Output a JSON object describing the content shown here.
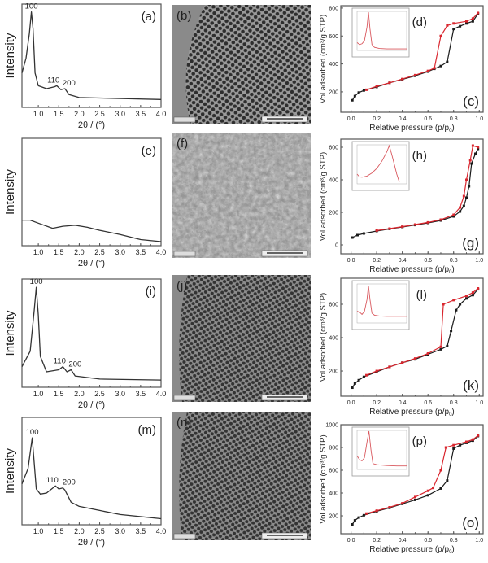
{
  "colors": {
    "adsorption": "#1a1a1a",
    "desorption": "#d9262e",
    "axis": "#555555",
    "tem_background": "#8a8a8a",
    "tem_pore": "#2e2e2e"
  },
  "chart_data": [
    {
      "panel": "(a)",
      "type": "line",
      "xlabel": "2θ / (°)",
      "ylabel": "Intensity",
      "xlim": [
        0.6,
        4.0
      ],
      "ylim": [
        0,
        1.05
      ],
      "xticks": [
        "1.0",
        "1.5",
        "2.0",
        "2.5",
        "3.0",
        "3.5",
        "4.0"
      ],
      "peaks": [
        {
          "label": "100",
          "x": 0.83
        },
        {
          "label": "110",
          "x": 1.45
        },
        {
          "label": "200",
          "x": 1.65
        }
      ],
      "x": [
        0.6,
        0.7,
        0.78,
        0.83,
        0.87,
        0.92,
        1.0,
        1.2,
        1.4,
        1.45,
        1.55,
        1.65,
        1.75,
        2.0,
        3.0,
        4.0
      ],
      "y": [
        0.35,
        0.5,
        0.75,
        0.97,
        0.8,
        0.35,
        0.22,
        0.19,
        0.21,
        0.22,
        0.18,
        0.19,
        0.13,
        0.1,
        0.09,
        0.08
      ]
    },
    {
      "panel": "(e)",
      "type": "line",
      "xlabel": "2θ / (°)",
      "ylabel": "Intensity",
      "xlim": [
        0.6,
        4.0
      ],
      "ylim": [
        0,
        1.05
      ],
      "xticks": [
        "1.0",
        "1.5",
        "2.0",
        "2.5",
        "3.0",
        "3.5",
        "4.0"
      ],
      "peaks": [],
      "x": [
        0.6,
        0.8,
        1.0,
        1.35,
        1.6,
        1.9,
        2.2,
        2.5,
        3.0,
        3.5,
        4.0
      ],
      "y": [
        0.25,
        0.25,
        0.22,
        0.17,
        0.19,
        0.2,
        0.18,
        0.15,
        0.11,
        0.06,
        0.04
      ]
    },
    {
      "panel": "(i)",
      "type": "line",
      "xlabel": "2θ / (°)",
      "ylabel": "Intensity",
      "xlim": [
        0.6,
        4.0
      ],
      "ylim": [
        0,
        1.05
      ],
      "xticks": [
        "1.0",
        "1.5",
        "2.0",
        "2.5",
        "3.0",
        "3.5",
        "4.0"
      ],
      "peaks": [
        {
          "label": "100",
          "x": 0.95
        },
        {
          "label": "110",
          "x": 1.6
        },
        {
          "label": "200",
          "x": 1.8
        }
      ],
      "x": [
        0.6,
        0.8,
        0.9,
        0.95,
        1.0,
        1.05,
        1.2,
        1.5,
        1.6,
        1.7,
        1.8,
        1.9,
        2.5,
        4.0
      ],
      "y": [
        0.2,
        0.35,
        0.75,
        0.97,
        0.7,
        0.3,
        0.15,
        0.17,
        0.2,
        0.15,
        0.17,
        0.11,
        0.08,
        0.07
      ]
    },
    {
      "panel": "(m)",
      "type": "line",
      "xlabel": "2θ / (°)",
      "ylabel": "Intensity",
      "xlim": [
        0.6,
        4.0
      ],
      "ylim": [
        0,
        1.05
      ],
      "xticks": [
        "1.0",
        "1.5",
        "2.0",
        "2.5",
        "3.0",
        "3.5",
        "4.0"
      ],
      "peaks": [
        {
          "label": "100",
          "x": 0.85
        },
        {
          "label": "110",
          "x": 1.42
        },
        {
          "label": "200",
          "x": 1.65
        }
      ],
      "x": [
        0.6,
        0.75,
        0.85,
        0.9,
        0.95,
        1.05,
        1.2,
        1.42,
        1.5,
        1.6,
        1.65,
        1.8,
        2.0,
        2.5,
        3.0,
        4.0
      ],
      "y": [
        0.4,
        0.55,
        0.85,
        0.6,
        0.35,
        0.3,
        0.31,
        0.38,
        0.35,
        0.36,
        0.34,
        0.22,
        0.18,
        0.14,
        0.1,
        0.06
      ]
    },
    {
      "panel": "(c)",
      "inset": "(d)",
      "type": "line",
      "xlabel": "Relative pressure (p/p",
      "xlabel_sub": "0",
      "xlabel_end": ")",
      "ylabel": "Vol adsorbed (cm³/g STP)",
      "xlim": [
        -0.08,
        1.03
      ],
      "ylim": [
        54,
        817
      ],
      "xticks": [
        0.0,
        0.2,
        0.4,
        0.6,
        0.8,
        1.0
      ],
      "yticks": [
        200,
        400,
        600,
        800
      ],
      "series": [
        {
          "x": [
            0.01,
            0.03,
            0.06,
            0.1,
            0.2,
            0.3,
            0.4,
            0.5,
            0.6,
            0.65,
            0.7,
            0.75,
            0.8,
            0.85,
            0.9,
            0.95,
            0.99
          ],
          "y": [
            140,
            170,
            195,
            210,
            235,
            265,
            290,
            315,
            345,
            365,
            385,
            415,
            650,
            670,
            690,
            705,
            760
          ]
        },
        {
          "x": [
            0.99,
            0.95,
            0.9,
            0.8,
            0.75,
            0.7,
            0.65,
            0.6,
            0.5,
            0.4,
            0.3,
            0.2,
            0.12
          ],
          "y": [
            765,
            725,
            705,
            690,
            675,
            600,
            370,
            350,
            320,
            292,
            265,
            240,
            215
          ]
        }
      ],
      "inset_curve": {
        "x": [
          0,
          0.05,
          0.1,
          0.15,
          0.2,
          0.23,
          0.26,
          0.3,
          0.35,
          0.45,
          0.6,
          0.8,
          1.0
        ],
        "y": [
          0.2,
          0.15,
          0.17,
          0.25,
          0.6,
          0.98,
          0.55,
          0.15,
          0.08,
          0.05,
          0.04,
          0.04,
          0.04
        ]
      }
    },
    {
      "panel": "(g)",
      "inset": "(h)",
      "type": "line",
      "xlabel": "Relative pressure (p/p",
      "xlabel_sub": "0",
      "xlabel_end": ")",
      "ylabel": "Vol adsorbed (cm³/g STP)",
      "xlim": [
        -0.08,
        1.03
      ],
      "ylim": [
        -55,
        650
      ],
      "xticks": [
        0.0,
        0.2,
        0.4,
        0.6,
        0.8,
        1.0
      ],
      "yticks": [
        0,
        200,
        400,
        600
      ],
      "series": [
        {
          "x": [
            0.01,
            0.05,
            0.1,
            0.2,
            0.3,
            0.4,
            0.5,
            0.6,
            0.7,
            0.8,
            0.85,
            0.88,
            0.9,
            0.92,
            0.94,
            0.97,
            0.99
          ],
          "y": [
            45,
            60,
            70,
            85,
            98,
            110,
            122,
            135,
            150,
            175,
            205,
            240,
            290,
            360,
            500,
            560,
            590
          ]
        },
        {
          "x": [
            0.99,
            0.95,
            0.93,
            0.9,
            0.88,
            0.85,
            0.8,
            0.7,
            0.6,
            0.5,
            0.4,
            0.3,
            0.2
          ],
          "y": [
            600,
            610,
            520,
            400,
            300,
            230,
            185,
            155,
            138,
            125,
            112,
            100,
            88
          ]
        }
      ],
      "inset_curve": {
        "x": [
          0,
          0.05,
          0.1,
          0.2,
          0.3,
          0.4,
          0.5,
          0.6,
          0.65,
          0.7,
          0.75,
          0.8,
          0.85
        ],
        "y": [
          0.25,
          0.18,
          0.17,
          0.2,
          0.28,
          0.4,
          0.58,
          0.82,
          0.98,
          0.75,
          0.5,
          0.25,
          0.05
        ]
      }
    },
    {
      "panel": "(k)",
      "inset": "(l)",
      "type": "line",
      "xlabel": "Relative pressure (p/p",
      "xlabel_sub": "0",
      "xlabel_end": ")",
      "ylabel": "Vol adsorbed (cm³/g STP)",
      "xlim": [
        -0.08,
        1.03
      ],
      "ylim": [
        49,
        756
      ],
      "xticks": [
        0.0,
        0.2,
        0.4,
        0.6,
        0.8,
        1.0
      ],
      "yticks": [
        200,
        400,
        600
      ],
      "series": [
        {
          "x": [
            0.01,
            0.03,
            0.06,
            0.1,
            0.2,
            0.3,
            0.4,
            0.5,
            0.6,
            0.7,
            0.75,
            0.78,
            0.82,
            0.85,
            0.9,
            0.95,
            0.99
          ],
          "y": [
            100,
            125,
            145,
            165,
            195,
            225,
            250,
            270,
            300,
            330,
            350,
            440,
            565,
            600,
            635,
            655,
            690
          ]
        },
        {
          "x": [
            0.99,
            0.95,
            0.9,
            0.8,
            0.72,
            0.7,
            0.6,
            0.5,
            0.4,
            0.3,
            0.2,
            0.12
          ],
          "y": [
            695,
            670,
            650,
            625,
            600,
            345,
            305,
            275,
            250,
            225,
            200,
            175
          ]
        }
      ],
      "inset_curve": {
        "x": [
          0,
          0.05,
          0.1,
          0.15,
          0.2,
          0.23,
          0.26,
          0.3,
          0.35,
          0.45,
          0.6,
          0.8,
          1.0
        ],
        "y": [
          0.3,
          0.28,
          0.22,
          0.3,
          0.6,
          0.95,
          0.6,
          0.25,
          0.2,
          0.18,
          0.17,
          0.17,
          0.17
        ]
      }
    },
    {
      "panel": "(o)",
      "inset": "(p)",
      "type": "line",
      "xlabel": "Relative pressure (p/p",
      "xlabel_sub": "0",
      "xlabel_end": ")",
      "ylabel": "Vol adsorbed (cm³/g STP)",
      "xlim": [
        -0.08,
        1.03
      ],
      "ylim": [
        43,
        1000
      ],
      "xticks": [
        0.0,
        0.2,
        0.4,
        0.6,
        0.8,
        1.0
      ],
      "yticks": [
        200,
        400,
        600,
        800,
        1000
      ],
      "series": [
        {
          "x": [
            0.01,
            0.03,
            0.06,
            0.1,
            0.2,
            0.3,
            0.4,
            0.5,
            0.6,
            0.7,
            0.75,
            0.8,
            0.85,
            0.9,
            0.95,
            0.99
          ],
          "y": [
            125,
            160,
            185,
            205,
            240,
            270,
            305,
            340,
            380,
            440,
            510,
            790,
            820,
            840,
            860,
            900
          ]
        },
        {
          "x": [
            0.99,
            0.95,
            0.9,
            0.8,
            0.74,
            0.7,
            0.64,
            0.6,
            0.5,
            0.4,
            0.3,
            0.2,
            0.12
          ],
          "y": [
            905,
            870,
            850,
            820,
            800,
            600,
            445,
            420,
            365,
            310,
            275,
            245,
            220
          ]
        }
      ],
      "inset_curve": {
        "x": [
          0,
          0.05,
          0.1,
          0.15,
          0.2,
          0.24,
          0.28,
          0.32,
          0.4,
          0.6,
          0.8,
          1.0
        ],
        "y": [
          0.35,
          0.25,
          0.22,
          0.3,
          0.7,
          0.98,
          0.5,
          0.15,
          0.12,
          0.1,
          0.09,
          0.09
        ]
      }
    }
  ],
  "tem": [
    {
      "panel": "(b)",
      "ordered": true
    },
    {
      "panel": "(f)",
      "ordered": false
    },
    {
      "panel": "(j)",
      "ordered": true
    },
    {
      "panel": "(n)",
      "ordered": true
    }
  ]
}
